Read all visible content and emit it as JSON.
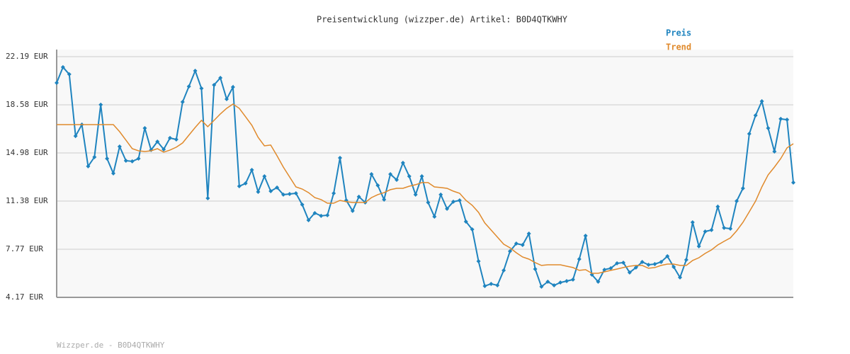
{
  "chart_data": {
    "type": "line",
    "title": "Preisentwicklung (wizzper.de) Artikel: B0D4QTKWHY",
    "footer": "Wizzper.de - B0D4QTKWHY",
    "ylim": [
      4.17,
      22.19
    ],
    "yticks": [
      {
        "value": 4.17,
        "label": "4.17 EUR"
      },
      {
        "value": 7.77,
        "label": "7.77 EUR"
      },
      {
        "value": 11.38,
        "label": "11.38 EUR"
      },
      {
        "value": 14.98,
        "label": "14.98 EUR"
      },
      {
        "value": 18.58,
        "label": "18.58 EUR"
      },
      {
        "value": 22.19,
        "label": "22.19 EUR"
      }
    ],
    "grid": true,
    "legend": "top-right",
    "series": [
      {
        "name": "Preis",
        "color": "#1f84bf",
        "markers": true,
        "values": [
          20.23,
          21.4,
          20.87,
          16.25,
          17.1,
          13.98,
          14.67,
          18.59,
          14.56,
          13.45,
          15.46,
          14.4,
          14.35,
          14.56,
          16.84,
          15.2,
          15.83,
          15.25,
          16.1,
          15.99,
          18.8,
          19.96,
          21.13,
          19.81,
          11.59,
          20.07,
          20.6,
          19.01,
          19.91,
          12.49,
          12.7,
          13.71,
          12.07,
          13.23,
          12.12,
          12.39,
          11.86,
          11.91,
          11.96,
          11.11,
          9.95,
          10.48,
          10.27,
          10.32,
          11.96,
          14.61,
          11.43,
          10.64,
          11.7,
          11.27,
          13.39,
          12.55,
          11.49,
          13.39,
          12.97,
          14.24,
          13.23,
          11.86,
          13.23,
          11.27,
          10.21,
          11.86,
          10.8,
          11.33,
          11.43,
          9.84,
          9.26,
          6.87,
          5.02,
          5.18,
          5.07,
          6.19,
          7.62,
          8.2,
          8.09,
          8.94,
          6.29,
          4.97,
          5.34,
          5.07,
          5.28,
          5.39,
          5.5,
          7.03,
          8.78,
          5.87,
          5.34,
          6.24,
          6.35,
          6.72,
          6.77,
          6.03,
          6.4,
          6.82,
          6.61,
          6.66,
          6.82,
          7.25,
          6.45,
          5.66,
          6.98,
          9.79,
          7.99,
          9.1,
          9.21,
          10.96,
          9.37,
          9.31,
          11.38,
          12.33,
          16.41,
          17.79,
          18.85,
          16.84,
          15.09,
          17.53,
          17.47,
          12.76
        ]
      },
      {
        "name": "Trend",
        "color": "#e08a2c",
        "markers": false,
        "values": [
          17.1,
          17.1,
          17.1,
          17.1,
          17.1,
          17.1,
          17.1,
          17.1,
          17.1,
          17.1,
          16.57,
          15.94,
          15.3,
          15.14,
          15.09,
          15.14,
          15.3,
          15.04,
          15.2,
          15.41,
          15.73,
          16.31,
          16.89,
          17.42,
          16.95,
          17.42,
          17.9,
          18.32,
          18.64,
          18.32,
          17.69,
          17.05,
          16.15,
          15.51,
          15.57,
          14.77,
          13.92,
          13.18,
          12.44,
          12.28,
          12.01,
          11.64,
          11.49,
          11.22,
          11.22,
          11.43,
          11.33,
          11.27,
          11.27,
          11.27,
          11.64,
          11.86,
          12.01,
          12.23,
          12.33,
          12.33,
          12.49,
          12.6,
          12.76,
          12.76,
          12.44,
          12.39,
          12.33,
          12.12,
          11.96,
          11.43,
          11.06,
          10.53,
          9.74,
          9.21,
          8.68,
          8.15,
          7.88,
          7.51,
          7.19,
          7.03,
          6.77,
          6.56,
          6.61,
          6.61,
          6.61,
          6.5,
          6.4,
          6.19,
          6.24,
          5.97,
          5.97,
          6.08,
          6.19,
          6.29,
          6.4,
          6.5,
          6.56,
          6.56,
          6.35,
          6.4,
          6.56,
          6.66,
          6.66,
          6.56,
          6.56,
          6.93,
          7.14,
          7.46,
          7.72,
          8.09,
          8.36,
          8.62,
          9.15,
          9.79,
          10.58,
          11.38,
          12.44,
          13.34,
          13.92,
          14.56,
          15.36,
          15.67
        ]
      }
    ]
  }
}
